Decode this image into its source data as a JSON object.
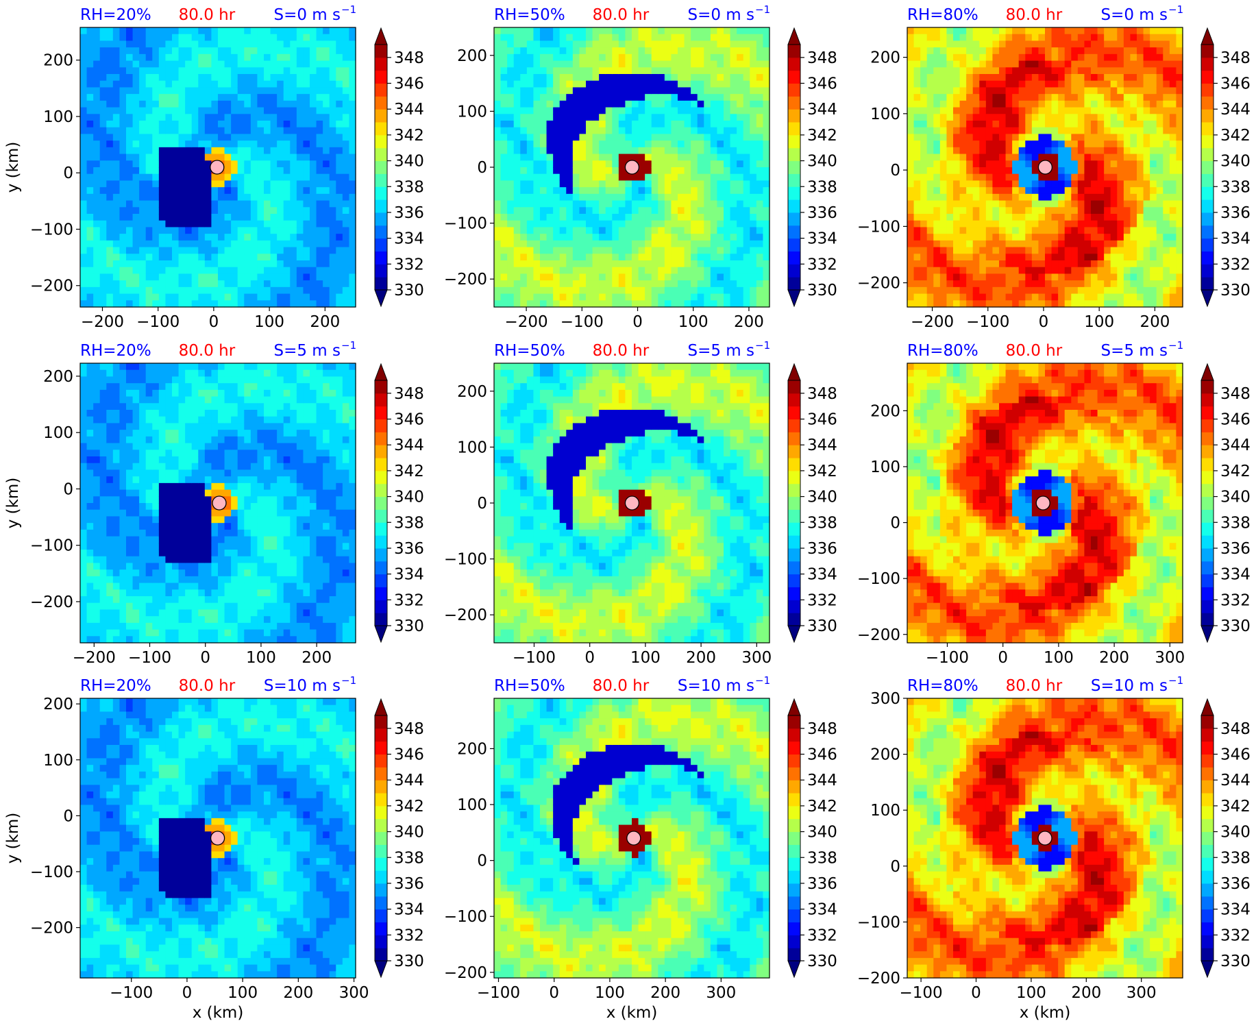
{
  "colors": {
    "rh_label": "#0000ff",
    "time_label": "#ff0000",
    "shear_label": "#0000ff",
    "center_marker_fill": "#ffb6c1",
    "center_marker_edge": "#000000"
  },
  "colorbar": {
    "ticks": [
      "348",
      "346",
      "344",
      "342",
      "340",
      "338",
      "336",
      "334",
      "332",
      "330"
    ],
    "min": 330,
    "max": 349,
    "step": 1,
    "extend": "both",
    "colormap": "jet"
  },
  "chart_data": [
    {
      "type": "heatmap",
      "rh": "RH=20%",
      "time": "80.0 hr",
      "shear": "S=0 m s",
      "shear_exp": "−1",
      "xticks": [
        "−200",
        "−100",
        "0",
        "100",
        "200"
      ],
      "xvals": [
        -200,
        -100,
        0,
        100,
        200
      ],
      "xlim": [
        -240,
        255
      ],
      "yticks": [
        "200",
        "100",
        "0",
        "−100",
        "−200"
      ],
      "yvals": [
        200,
        100,
        0,
        -100,
        -200
      ],
      "ylim": [
        -238,
        258
      ],
      "ylabel": "y (km)",
      "xlabel": "",
      "center": [
        6,
        10
      ],
      "pattern": "dry"
    },
    {
      "type": "heatmap",
      "rh": "RH=50%",
      "time": "80.0 hr",
      "shear": "S=0 m s",
      "shear_exp": "−1",
      "xticks": [
        "−200",
        "−100",
        "0",
        "100",
        "200"
      ],
      "xvals": [
        -200,
        -100,
        0,
        100,
        200
      ],
      "xlim": [
        -258,
        237
      ],
      "yticks": [
        "200",
        "100",
        "0",
        "−100",
        "−200"
      ],
      "yvals": [
        200,
        100,
        0,
        -100,
        -200
      ],
      "ylim": [
        -250,
        250
      ],
      "ylabel": "",
      "xlabel": "",
      "center": [
        -10,
        0
      ],
      "pattern": "mid"
    },
    {
      "type": "heatmap",
      "rh": "RH=80%",
      "time": "80.0 hr",
      "shear": "S=0 m s",
      "shear_exp": "−1",
      "xticks": [
        "−200",
        "−100",
        "0",
        "100",
        "200"
      ],
      "xvals": [
        -200,
        -100,
        0,
        100,
        200
      ],
      "xlim": [
        -245,
        250
      ],
      "yticks": [
        "200",
        "100",
        "0",
        "−100",
        "−200"
      ],
      "yvals": [
        200,
        100,
        0,
        -100,
        -200
      ],
      "ylim": [
        -243,
        253
      ],
      "ylabel": "",
      "xlabel": "",
      "center": [
        3,
        5
      ],
      "pattern": "moist"
    },
    {
      "type": "heatmap",
      "rh": "RH=20%",
      "time": "80.0 hr",
      "shear": "S=5 m s",
      "shear_exp": "−1",
      "xticks": [
        "−200",
        "−100",
        "0",
        "100",
        "200"
      ],
      "xvals": [
        -200,
        -100,
        0,
        100,
        200
      ],
      "xlim": [
        -225,
        270
      ],
      "yticks": [
        "200",
        "100",
        "0",
        "−100",
        "−200"
      ],
      "yvals": [
        200,
        100,
        0,
        -100,
        -200
      ],
      "ylim": [
        -273,
        223
      ],
      "ylabel": "y (km)",
      "xlabel": "",
      "center": [
        25,
        -25
      ],
      "pattern": "dry"
    },
    {
      "type": "heatmap",
      "rh": "RH=50%",
      "time": "80.0 hr",
      "shear": "S=5 m s",
      "shear_exp": "−1",
      "xticks": [
        "−100",
        "0",
        "100",
        "200",
        "300"
      ],
      "xvals": [
        -100,
        0,
        100,
        200,
        300
      ],
      "xlim": [
        -172,
        323
      ],
      "yticks": [
        "200",
        "100",
        "0",
        "−100",
        "−200"
      ],
      "yvals": [
        200,
        100,
        0,
        -100,
        -200
      ],
      "ylim": [
        -250,
        250
      ],
      "ylabel": "",
      "xlabel": "",
      "center": [
        76,
        0
      ],
      "pattern": "mid"
    },
    {
      "type": "heatmap",
      "rh": "RH=80%",
      "time": "80.0 hr",
      "shear": "S=5 m s",
      "shear_exp": "−1",
      "xticks": [
        "−100",
        "0",
        "100",
        "200",
        "300"
      ],
      "xvals": [
        -100,
        0,
        100,
        200,
        300
      ],
      "xlim": [
        -172,
        323
      ],
      "yticks": [
        "200",
        "100",
        "0",
        "−100",
        "−200"
      ],
      "yvals": [
        200,
        100,
        0,
        -100,
        -200
      ],
      "ylim": [
        -215,
        285
      ],
      "ylabel": "",
      "xlabel": "",
      "center": [
        72,
        35
      ],
      "pattern": "moist"
    },
    {
      "type": "heatmap",
      "rh": "RH=20%",
      "time": "80.0 hr",
      "shear": "S=10 m s",
      "shear_exp": "−1",
      "xticks": [
        "−100",
        "0",
        "100",
        "200",
        "300"
      ],
      "xvals": [
        -100,
        0,
        100,
        200,
        300
      ],
      "xlim": [
        -192,
        303
      ],
      "yticks": [
        "200",
        "100",
        "0",
        "−100",
        "−200"
      ],
      "yvals": [
        200,
        100,
        0,
        -100,
        -200
      ],
      "ylim": [
        -290,
        210
      ],
      "ylabel": "y (km)",
      "xlabel": "x (km)",
      "center": [
        55,
        -40
      ],
      "pattern": "dry"
    },
    {
      "type": "heatmap",
      "rh": "RH=50%",
      "time": "80.0 hr",
      "shear": "S=10 m s",
      "shear_exp": "−1",
      "xticks": [
        "−100",
        "0",
        "100",
        "200",
        "300"
      ],
      "xvals": [
        -100,
        0,
        100,
        200,
        300
      ],
      "xlim": [
        -108,
        387
      ],
      "yticks": [
        "200",
        "100",
        "0",
        "−100",
        "−200"
      ],
      "yvals": [
        200,
        100,
        0,
        -100,
        -200
      ],
      "ylim": [
        -210,
        290
      ],
      "ylabel": "",
      "xlabel": "x (km)",
      "center": [
        143,
        40
      ],
      "pattern": "mid"
    },
    {
      "type": "heatmap",
      "rh": "RH=80%",
      "time": "80.0 hr",
      "shear": "S=10 m s",
      "shear_exp": "−1",
      "xticks": [
        "−100",
        "0",
        "100",
        "200",
        "300"
      ],
      "xvals": [
        -100,
        0,
        100,
        200,
        300
      ],
      "xlim": [
        -125,
        375
      ],
      "yticks": [
        "300",
        "200",
        "100",
        "0",
        "−100",
        "−200"
      ],
      "yvals": [
        300,
        200,
        100,
        0,
        -100,
        -200
      ],
      "ylim": [
        -200,
        300
      ],
      "ylabel": "",
      "xlabel": "x (km)",
      "center": [
        125,
        50
      ],
      "pattern": "moist"
    }
  ]
}
